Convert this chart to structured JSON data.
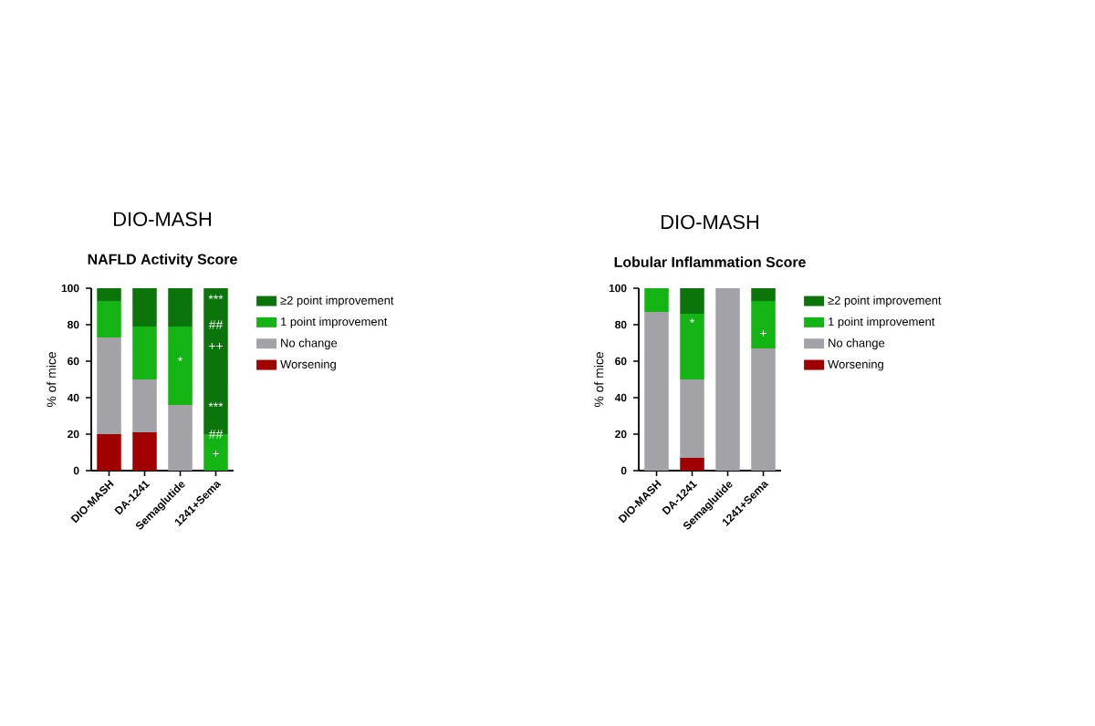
{
  "chart_data": [
    {
      "type": "bar",
      "stacked": true,
      "title": "DIO-MASH",
      "subtitle": "NAFLD  Activity  Score",
      "ylabel": "% of mice",
      "categories": [
        "DIO-MASH",
        "DA-1241",
        "Semaglutide",
        "1241+Sema"
      ],
      "series": [
        {
          "name": "Worsening",
          "color": "#a00000",
          "values": [
            20,
            21,
            0,
            0
          ]
        },
        {
          "name": "No change",
          "color": "#a3a3a7",
          "values": [
            53,
            29,
            36,
            0
          ]
        },
        {
          "name": "1 point improvement",
          "color": "#14b414",
          "values": [
            20,
            29,
            43,
            20
          ]
        },
        {
          "name": "≥2 point improvement",
          "color": "#0b740b",
          "values": [
            7,
            21,
            21,
            80
          ]
        }
      ],
      "ylim": [
        0,
        100
      ],
      "yticks": [
        0,
        20,
        40,
        60,
        80,
        100
      ],
      "legend": "right",
      "annotations": [
        {
          "text": "*",
          "x": "Semaglutide",
          "y": 60
        },
        {
          "text": "***",
          "x": "1241+Sema",
          "y": 94
        },
        {
          "text": "##",
          "x": "1241+Sema",
          "y": 80
        },
        {
          "text": "++",
          "x": "1241+Sema",
          "y": 68
        },
        {
          "text": "***",
          "x": "1241+Sema",
          "y": 35
        },
        {
          "text": "##",
          "x": "1241+Sema",
          "y": 20
        },
        {
          "text": "+",
          "x": "1241+Sema",
          "y": 9
        }
      ]
    },
    {
      "type": "bar",
      "stacked": true,
      "title": "DIO-MASH",
      "subtitle": "Lobular Inflammation Score",
      "ylabel": "% of mice",
      "categories": [
        "DIO-MASH",
        "DA-1241",
        "Semaglutide",
        "1241+Sema"
      ],
      "series": [
        {
          "name": "Worsening",
          "color": "#a00000",
          "values": [
            0,
            7,
            0,
            0
          ]
        },
        {
          "name": "No change",
          "color": "#a3a3a7",
          "values": [
            87,
            43,
            100,
            67
          ]
        },
        {
          "name": "1 point improvement",
          "color": "#14b414",
          "values": [
            13,
            36,
            0,
            26
          ]
        },
        {
          "name": "≥2 point improvement",
          "color": "#0b740b",
          "values": [
            0,
            14,
            0,
            7
          ]
        }
      ],
      "ylim": [
        0,
        100
      ],
      "yticks": [
        0,
        20,
        40,
        60,
        80,
        100
      ],
      "legend": "right",
      "annotations": [
        {
          "text": "*",
          "x": "DA-1241",
          "y": 81
        },
        {
          "text": "+",
          "x": "1241+Sema",
          "y": 75
        }
      ]
    }
  ]
}
